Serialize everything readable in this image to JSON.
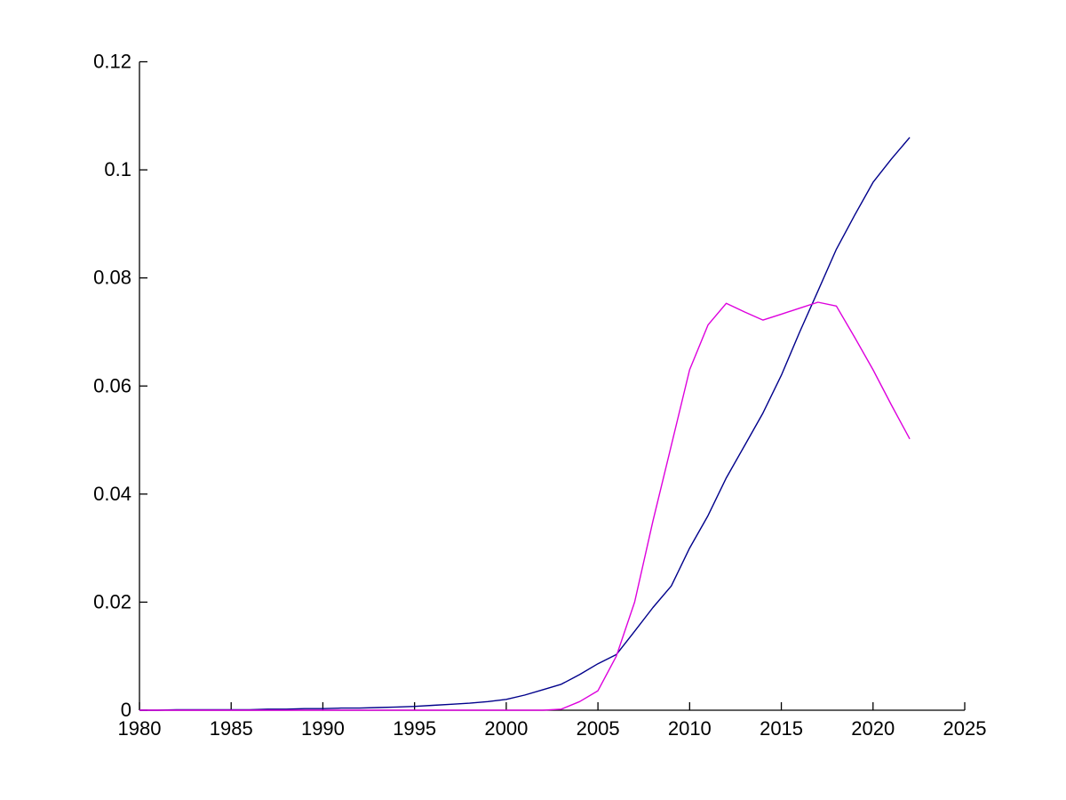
{
  "figure": {
    "background_color": "#ffffff",
    "title": "",
    "legend": "none"
  },
  "chart_data": {
    "type": "line",
    "title": "",
    "xlabel": "",
    "ylabel": "",
    "xlim": [
      1980,
      2025
    ],
    "ylim": [
      0,
      0.12
    ],
    "grid": false,
    "legend_position": "none",
    "axis_color": "#000000",
    "x_ticks": [
      1980,
      1985,
      1990,
      1995,
      2000,
      2005,
      2010,
      2015,
      2020,
      2025
    ],
    "x_tick_labels": [
      "1980",
      "1985",
      "1990",
      "1995",
      "2000",
      "2005",
      "2010",
      "2015",
      "2020",
      "2025"
    ],
    "y_ticks": [
      0,
      0.02,
      0.04,
      0.06,
      0.08,
      0.1,
      0.12
    ],
    "y_tick_labels": [
      "0",
      "0.02",
      "0.04",
      "0.06",
      "0.08",
      "0.1",
      "0.12"
    ],
    "x": [
      1980,
      1981,
      1982,
      1983,
      1984,
      1985,
      1986,
      1987,
      1988,
      1989,
      1990,
      1991,
      1992,
      1993,
      1994,
      1995,
      1996,
      1997,
      1998,
      1999,
      2000,
      2001,
      2002,
      2003,
      2004,
      2005,
      2006,
      2007,
      2008,
      2009,
      2010,
      2011,
      2012,
      2013,
      2014,
      2015,
      2016,
      2017,
      2018,
      2019,
      2020,
      2021,
      2022
    ],
    "series": [
      {
        "name": "series-1-blue",
        "color": "#00008B",
        "values": [
          0.0,
          0.0,
          0.0001,
          0.0001,
          0.0001,
          0.0001,
          0.0001,
          0.0002,
          0.0002,
          0.0003,
          0.0003,
          0.0004,
          0.0004,
          0.0005,
          0.0006,
          0.0007,
          0.0009,
          0.0011,
          0.0013,
          0.0016,
          0.002,
          0.0028,
          0.0038,
          0.0048,
          0.0066,
          0.0086,
          0.0103,
          0.0146,
          0.019,
          0.023,
          0.03,
          0.036,
          0.043,
          0.049,
          0.055,
          0.062,
          0.07,
          0.0776,
          0.0853,
          0.0916,
          0.0977,
          0.102,
          0.106
        ]
      },
      {
        "name": "series-2-magenta",
        "color": "#DD00DD",
        "values": [
          0.0,
          0.0,
          0.0,
          0.0,
          0.0,
          0.0,
          0.0,
          0.0,
          0.0,
          0.0,
          0.0,
          0.0,
          0.0,
          0.0,
          0.0,
          0.0,
          0.0,
          0.0,
          0.0,
          0.0,
          0.0,
          0.0,
          0.0,
          0.0002,
          0.0016,
          0.0036,
          0.01,
          0.02,
          0.035,
          0.049,
          0.063,
          0.0713,
          0.0753,
          0.0737,
          0.0722,
          0.0733,
          0.0744,
          0.0755,
          0.0748,
          0.069,
          0.063,
          0.0565,
          0.0502
        ]
      }
    ]
  }
}
